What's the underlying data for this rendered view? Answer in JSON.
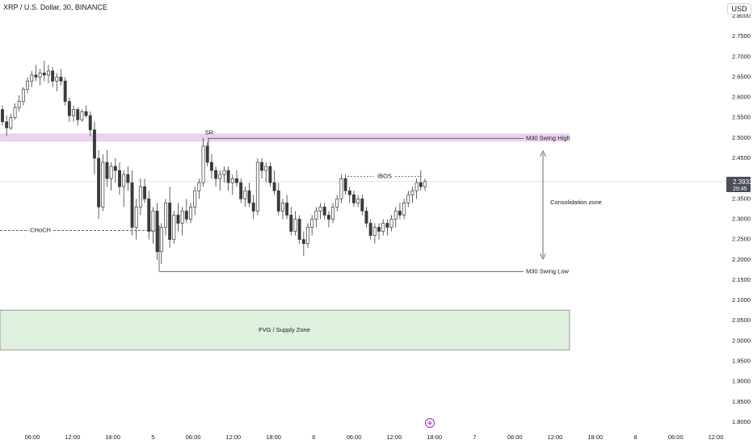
{
  "header": {
    "symbol": "XRP / U.S. Dollar, 30, BINANCE",
    "currency": "USD"
  },
  "chart_data": {
    "type": "candlestick",
    "y_ticks": [
      "2.8000",
      "2.7500",
      "2.7000",
      "2.6500",
      "2.6000",
      "2.5500",
      "2.5000",
      "2.4500",
      "2.4000",
      "2.3500",
      "2.3000",
      "2.2500",
      "2.2000",
      "2.1500",
      "2.1000",
      "2.0500",
      "2.0000",
      "1.9500",
      "1.9000",
      "1.8500",
      "1.8000"
    ],
    "ylim": [
      1.79,
      2.835
    ],
    "x_tick_labels": [
      "06:00",
      "12:00",
      "18:00",
      "5",
      "06:00",
      "12:00",
      "18:00",
      "6",
      "06:00",
      "12:00",
      "18:00",
      "7",
      "06:00",
      "12:00",
      "18:00",
      "8",
      "06:00",
      "12:00"
    ],
    "current_price": "2.3933",
    "countdown": "29:45",
    "zones": [
      {
        "label": "FVG / Supply Zone",
        "y_top": 2.076,
        "y_bottom": 1.978,
        "fill": "#dff0df",
        "stroke": "#777777"
      },
      {
        "label": "",
        "y_top": 2.511,
        "y_bottom": 2.491,
        "fill": "#ead2ee"
      }
    ],
    "levels": [
      {
        "label": "M30 Swing High",
        "y": 2.499
      },
      {
        "label": "M30 Swing Low",
        "y": 2.171
      },
      {
        "label": "CHoCH",
        "y": 2.272
      },
      {
        "label": "SR",
        "y": 2.499
      },
      {
        "label": "IBOS",
        "y": 2.405
      }
    ],
    "annotation": "Consolidation zone",
    "ohlc": [
      [
        2.57,
        2.58,
        2.53,
        2.54
      ],
      [
        2.54,
        2.555,
        2.505,
        2.525
      ],
      [
        2.525,
        2.56,
        2.52,
        2.55
      ],
      [
        2.55,
        2.585,
        2.545,
        2.575
      ],
      [
        2.575,
        2.605,
        2.565,
        2.59
      ],
      [
        2.59,
        2.625,
        2.58,
        2.62
      ],
      [
        2.62,
        2.65,
        2.61,
        2.64
      ],
      [
        2.64,
        2.665,
        2.625,
        2.655
      ],
      [
        2.655,
        2.68,
        2.64,
        2.65
      ],
      [
        2.65,
        2.67,
        2.63,
        2.66
      ],
      [
        2.66,
        2.69,
        2.64,
        2.655
      ],
      [
        2.655,
        2.68,
        2.635,
        2.665
      ],
      [
        2.665,
        2.675,
        2.625,
        2.64
      ],
      [
        2.64,
        2.66,
        2.615,
        2.65
      ],
      [
        2.65,
        2.67,
        2.63,
        2.64
      ],
      [
        2.64,
        2.65,
        2.58,
        2.59
      ],
      [
        2.59,
        2.6,
        2.54,
        2.555
      ],
      [
        2.555,
        2.58,
        2.54,
        2.57
      ],
      [
        2.57,
        2.575,
        2.53,
        2.545
      ],
      [
        2.545,
        2.57,
        2.54,
        2.565
      ],
      [
        2.565,
        2.58,
        2.55,
        2.555
      ],
      [
        2.555,
        2.565,
        2.505,
        2.52
      ],
      [
        2.52,
        2.54,
        2.41,
        2.45
      ],
      [
        2.45,
        2.47,
        2.3,
        2.33
      ],
      [
        2.33,
        2.46,
        2.32,
        2.44
      ],
      [
        2.44,
        2.47,
        2.38,
        2.4
      ],
      [
        2.4,
        2.44,
        2.37,
        2.43
      ],
      [
        2.43,
        2.45,
        2.39,
        2.42
      ],
      [
        2.42,
        2.44,
        2.36,
        2.38
      ],
      [
        2.38,
        2.42,
        2.33,
        2.41
      ],
      [
        2.41,
        2.43,
        2.37,
        2.39
      ],
      [
        2.39,
        2.42,
        2.26,
        2.28
      ],
      [
        2.28,
        2.35,
        2.25,
        2.33
      ],
      [
        2.33,
        2.4,
        2.31,
        2.38
      ],
      [
        2.38,
        2.4,
        2.34,
        2.35
      ],
      [
        2.35,
        2.37,
        2.25,
        2.27
      ],
      [
        2.27,
        2.33,
        2.24,
        2.32
      ],
      [
        2.32,
        2.34,
        2.2,
        2.22
      ],
      [
        2.22,
        2.29,
        2.19,
        2.28
      ],
      [
        2.28,
        2.35,
        2.26,
        2.34
      ],
      [
        2.34,
        2.38,
        2.23,
        2.25
      ],
      [
        2.25,
        2.32,
        2.24,
        2.31
      ],
      [
        2.31,
        2.34,
        2.27,
        2.29
      ],
      [
        2.29,
        2.33,
        2.26,
        2.32
      ],
      [
        2.32,
        2.35,
        2.29,
        2.3
      ],
      [
        2.3,
        2.34,
        2.29,
        2.33
      ],
      [
        2.33,
        2.38,
        2.31,
        2.37
      ],
      [
        2.37,
        2.4,
        2.35,
        2.39
      ],
      [
        2.39,
        2.5,
        2.38,
        2.48
      ],
      [
        2.48,
        2.49,
        2.43,
        2.44
      ],
      [
        2.44,
        2.46,
        2.4,
        2.42
      ],
      [
        2.42,
        2.43,
        2.38,
        2.4
      ],
      [
        2.4,
        2.42,
        2.37,
        2.41
      ],
      [
        2.41,
        2.43,
        2.39,
        2.42
      ],
      [
        2.42,
        2.43,
        2.37,
        2.39
      ],
      [
        2.39,
        2.41,
        2.36,
        2.4
      ],
      [
        2.4,
        2.42,
        2.38,
        2.39
      ],
      [
        2.39,
        2.4,
        2.34,
        2.35
      ],
      [
        2.35,
        2.38,
        2.33,
        2.37
      ],
      [
        2.37,
        2.39,
        2.33,
        2.34
      ],
      [
        2.34,
        2.36,
        2.3,
        2.32
      ],
      [
        2.32,
        2.45,
        2.31,
        2.44
      ],
      [
        2.44,
        2.45,
        2.4,
        2.42
      ],
      [
        2.42,
        2.44,
        2.39,
        2.43
      ],
      [
        2.43,
        2.44,
        2.38,
        2.39
      ],
      [
        2.39,
        2.42,
        2.36,
        2.37
      ],
      [
        2.37,
        2.39,
        2.31,
        2.32
      ],
      [
        2.32,
        2.35,
        2.3,
        2.34
      ],
      [
        2.34,
        2.36,
        2.3,
        2.31
      ],
      [
        2.31,
        2.33,
        2.26,
        2.27
      ],
      [
        2.27,
        2.32,
        2.26,
        2.3
      ],
      [
        2.3,
        2.31,
        2.24,
        2.25
      ],
      [
        2.25,
        2.27,
        2.21,
        2.24
      ],
      [
        2.24,
        2.29,
        2.23,
        2.28
      ],
      [
        2.28,
        2.31,
        2.26,
        2.3
      ],
      [
        2.3,
        2.33,
        2.28,
        2.32
      ],
      [
        2.32,
        2.34,
        2.3,
        2.33
      ],
      [
        2.33,
        2.34,
        2.3,
        2.31
      ],
      [
        2.31,
        2.32,
        2.28,
        2.3
      ],
      [
        2.3,
        2.34,
        2.29,
        2.33
      ],
      [
        2.33,
        2.36,
        2.32,
        2.35
      ],
      [
        2.35,
        2.41,
        2.34,
        2.4
      ],
      [
        2.4,
        2.41,
        2.36,
        2.37
      ],
      [
        2.37,
        2.38,
        2.34,
        2.36
      ],
      [
        2.36,
        2.37,
        2.33,
        2.34
      ],
      [
        2.34,
        2.36,
        2.33,
        2.35
      ],
      [
        2.35,
        2.36,
        2.31,
        2.32
      ],
      [
        2.32,
        2.33,
        2.28,
        2.29
      ],
      [
        2.29,
        2.3,
        2.25,
        2.26
      ],
      [
        2.26,
        2.29,
        2.24,
        2.28
      ],
      [
        2.28,
        2.29,
        2.25,
        2.27
      ],
      [
        2.27,
        2.3,
        2.26,
        2.29
      ],
      [
        2.29,
        2.3,
        2.26,
        2.28
      ],
      [
        2.28,
        2.31,
        2.27,
        2.3
      ],
      [
        2.3,
        2.33,
        2.28,
        2.32
      ],
      [
        2.32,
        2.34,
        2.3,
        2.31
      ],
      [
        2.31,
        2.35,
        2.3,
        2.34
      ],
      [
        2.34,
        2.37,
        2.33,
        2.36
      ],
      [
        2.36,
        2.38,
        2.34,
        2.37
      ],
      [
        2.37,
        2.4,
        2.35,
        2.39
      ],
      [
        2.39,
        2.42,
        2.37,
        2.38
      ],
      [
        2.38,
        2.4,
        2.37,
        2.393
      ]
    ]
  }
}
